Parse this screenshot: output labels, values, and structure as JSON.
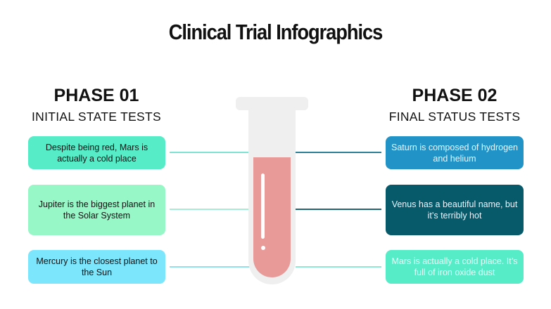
{
  "title": "Clinical Trial Infographics",
  "left": {
    "phase": "PHASE 01",
    "subtitle": "INITIAL STATE TESTS",
    "items": [
      {
        "text": "Despite being red, Mars is actually a cold place",
        "color": "#56ecc7"
      },
      {
        "text": "Jupiter is the biggest planet in the Solar System",
        "color": "#98f7c6"
      },
      {
        "text": "Mercury is the closest planet to the Sun",
        "color": "#7ce6fc"
      }
    ]
  },
  "right": {
    "phase": "PHASE 02",
    "subtitle": "FINAL STATUS TESTS",
    "items": [
      {
        "text": "Saturn is composed of hydrogen and helium",
        "color": "#2193c7"
      },
      {
        "text": "Venus has a beautiful name, but it’s terribly hot",
        "color": "#065a6a"
      },
      {
        "text": "Mars is actually a cold place. It’s full of iron oxide dust",
        "color": "#56ecc7"
      }
    ]
  },
  "tube": {
    "fill_color": "#e89a99",
    "fill_level_percent": 70
  }
}
